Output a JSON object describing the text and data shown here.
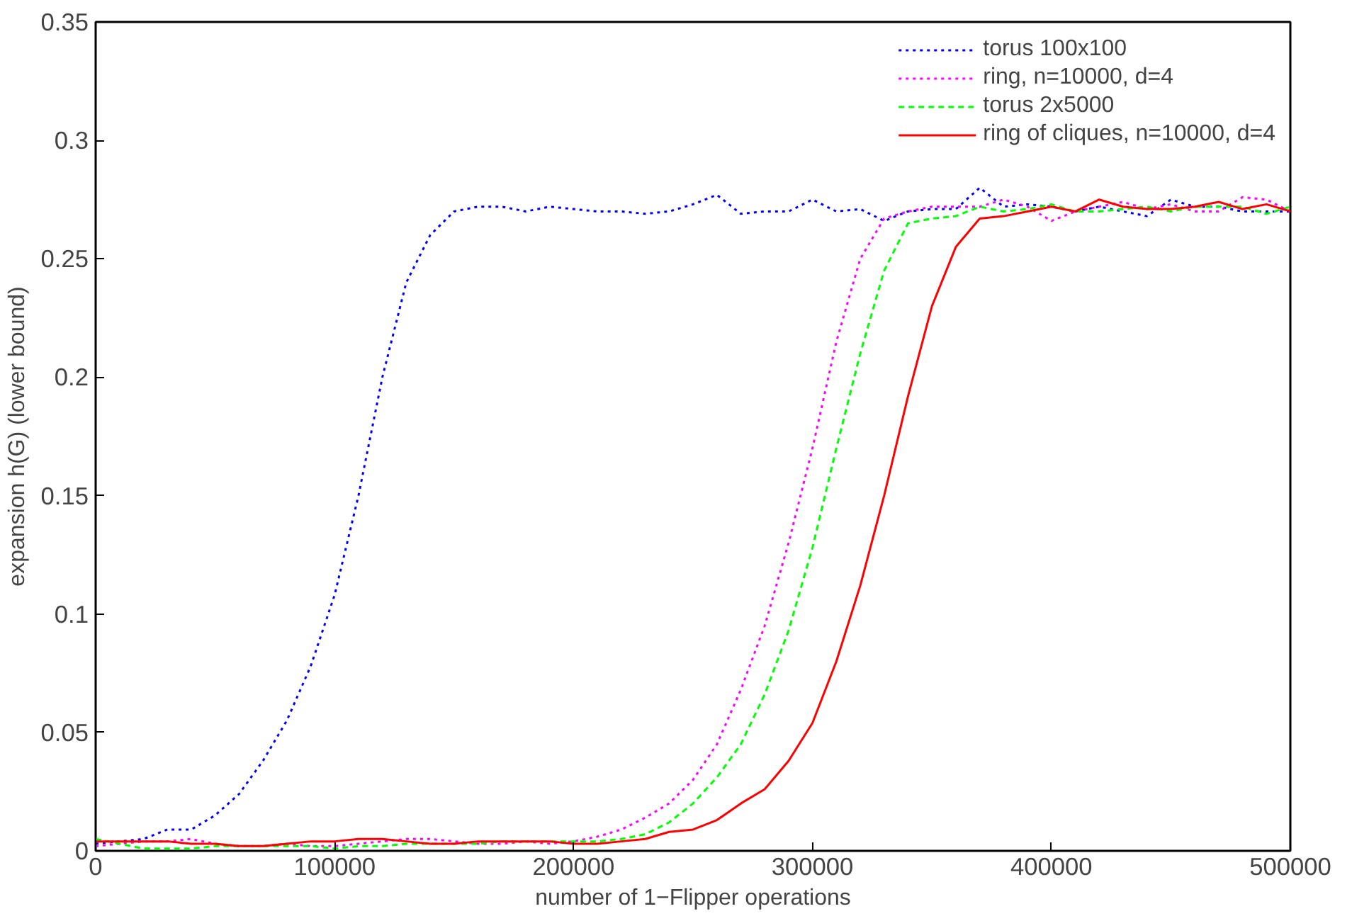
{
  "chart_data": {
    "type": "line",
    "xlabel": "number of 1−Flipper operations",
    "ylabel": "expansion h(G) (lower bound)",
    "x": [
      0,
      10000,
      20000,
      30000,
      40000,
      50000,
      60000,
      70000,
      80000,
      90000,
      100000,
      110000,
      120000,
      130000,
      140000,
      150000,
      160000,
      170000,
      180000,
      190000,
      200000,
      210000,
      220000,
      230000,
      240000,
      250000,
      260000,
      270000,
      280000,
      290000,
      300000,
      310000,
      320000,
      330000,
      340000,
      350000,
      360000,
      370000,
      380000,
      390000,
      400000,
      410000,
      420000,
      430000,
      440000,
      450000,
      460000,
      470000,
      480000,
      490000,
      500000
    ],
    "series": [
      {
        "name": "torus 100x100",
        "color": "#0000ff",
        "line_style": "dotted",
        "values": [
          0.003,
          0.004,
          0.005,
          0.009,
          0.009,
          0.015,
          0.024,
          0.038,
          0.055,
          0.078,
          0.108,
          0.15,
          0.2,
          0.24,
          0.26,
          0.27,
          0.272,
          0.272,
          0.27,
          0.272,
          0.271,
          0.27,
          0.27,
          0.269,
          0.27,
          0.273,
          0.277,
          0.269,
          0.27,
          0.27,
          0.275,
          0.27,
          0.271,
          0.266,
          0.27,
          0.271,
          0.271,
          0.28,
          0.272,
          0.273,
          0.272,
          0.27,
          0.272,
          0.27,
          0.268,
          0.275,
          0.272,
          0.272,
          0.27,
          0.27,
          0.27
        ]
      },
      {
        "name": "ring, n=10000, d=4",
        "color": "#ff00ff",
        "line_style": "dotted",
        "values": [
          0.002,
          0.003,
          0.004,
          0.004,
          0.005,
          0.003,
          0.002,
          0.002,
          0.003,
          0.002,
          0.002,
          0.003,
          0.004,
          0.005,
          0.005,
          0.004,
          0.003,
          0.003,
          0.004,
          0.003,
          0.004,
          0.006,
          0.009,
          0.014,
          0.02,
          0.03,
          0.045,
          0.068,
          0.095,
          0.13,
          0.17,
          0.215,
          0.25,
          0.267,
          0.27,
          0.272,
          0.272,
          0.272,
          0.275,
          0.272,
          0.266,
          0.27,
          0.272,
          0.274,
          0.271,
          0.273,
          0.27,
          0.27,
          0.276,
          0.275,
          0.27
        ]
      },
      {
        "name": "torus 2x5000",
        "color": "#00ff00",
        "line_style": "dashed",
        "values": [
          0.005,
          0.003,
          0.001,
          0.001,
          0.001,
          0.002,
          0.002,
          0.002,
          0.002,
          0.002,
          0.001,
          0.002,
          0.002,
          0.003,
          0.003,
          0.003,
          0.003,
          0.004,
          0.004,
          0.004,
          0.004,
          0.004,
          0.005,
          0.007,
          0.012,
          0.02,
          0.031,
          0.045,
          0.066,
          0.093,
          0.128,
          0.17,
          0.21,
          0.245,
          0.265,
          0.267,
          0.268,
          0.272,
          0.27,
          0.271,
          0.273,
          0.27,
          0.27,
          0.271,
          0.272,
          0.27,
          0.272,
          0.272,
          0.272,
          0.269,
          0.272
        ]
      },
      {
        "name": "ring of cliques, n=10000, d=4",
        "color": "#ff0000",
        "line_style": "solid",
        "values": [
          0.004,
          0.004,
          0.004,
          0.004,
          0.003,
          0.003,
          0.002,
          0.002,
          0.003,
          0.004,
          0.004,
          0.005,
          0.005,
          0.004,
          0.003,
          0.003,
          0.004,
          0.004,
          0.004,
          0.004,
          0.003,
          0.003,
          0.004,
          0.005,
          0.008,
          0.009,
          0.013,
          0.02,
          0.026,
          0.038,
          0.054,
          0.08,
          0.112,
          0.15,
          0.192,
          0.23,
          0.255,
          0.267,
          0.268,
          0.27,
          0.272,
          0.27,
          0.275,
          0.272,
          0.271,
          0.271,
          0.272,
          0.274,
          0.271,
          0.273,
          0.27
        ]
      }
    ],
    "xlim": [
      0,
      500000
    ],
    "xticks": [
      0,
      100000,
      200000,
      300000,
      400000,
      500000
    ],
    "ylim": [
      0,
      0.35
    ],
    "yticks": [
      0,
      {
        "value": 0.05,
        "label": "0.05"
      },
      {
        "value": 0.1,
        "label": "0.1"
      },
      {
        "value": 0.15,
        "label": "0.15"
      },
      {
        "value": 0.2,
        "label": "0.2"
      },
      {
        "value": 0.25,
        "label": "0.25"
      },
      {
        "value": 0.3,
        "label": "0.3"
      },
      {
        "value": 0.35,
        "label": "0.35"
      }
    ],
    "grid": false,
    "legend": "top right"
  }
}
